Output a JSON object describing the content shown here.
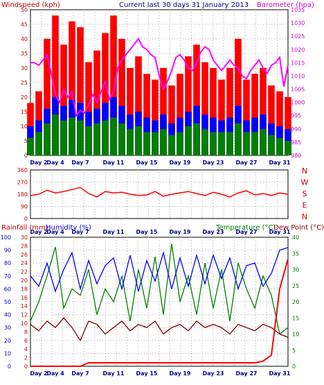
{
  "title": "Current last 30 days 31 January 2013",
  "chart_data": [
    {
      "type": "line",
      "panel": "wind-baro",
      "title": "Current last 30 days 31 January 2013",
      "ylabel_left": "Windspeed (kph)",
      "ylabel_right": "Barometer (hpa)",
      "ylim_left": [
        0,
        50
      ],
      "ylim_right": [
        980,
        1035
      ],
      "left_ticks": [
        "0",
        "5",
        "10",
        "15",
        "20",
        "25",
        "30",
        "35",
        "40",
        "45",
        "50"
      ],
      "right_ticks": [
        "980",
        "985",
        "990",
        "995",
        "1000",
        "1005",
        "1010",
        "1015",
        "1020",
        "1025",
        "1030",
        "1035"
      ],
      "x_ticks": [
        "Day 2",
        "Day 4",
        "Day 7",
        "Day 11",
        "Day 15",
        "Day 19",
        "Day 23",
        "Day 27",
        "Day 31"
      ],
      "x_tick_days": [
        2,
        4,
        7,
        11,
        15,
        19,
        23,
        27,
        31
      ],
      "x_range_days": [
        1,
        32
      ],
      "grid": true,
      "colors": {
        "gust": "#ff0000",
        "average": "#0000ff",
        "avg2": "#008000",
        "barometer": "#ff00ff"
      },
      "series": [
        {
          "key": "barometer",
          "x": [
            1,
            1.5,
            2,
            2.5,
            3,
            3.5,
            4,
            4.5,
            5,
            5.5,
            6,
            6.5,
            7,
            7.5,
            8,
            8.5,
            9,
            9.5,
            10,
            10.5,
            11,
            11.5,
            12,
            12.5,
            13,
            13.5,
            14,
            14.5,
            15,
            15.5,
            16,
            16.5,
            17,
            17.5,
            18,
            18.5,
            19,
            19.5,
            20,
            20.5,
            21,
            21.5,
            22,
            22.5,
            23,
            23.5,
            24,
            24.5,
            25,
            25.5,
            26,
            26.5,
            27,
            27.5,
            28,
            28.5,
            29,
            29.5,
            30,
            30.5,
            31,
            31.5,
            32
          ],
          "values": [
            1015,
            1015,
            1014,
            1016,
            1018,
            1011,
            1003,
            1000,
            1005,
            1002,
            1004,
            995,
            997,
            996,
            999,
            1003,
            1000,
            1004,
            1008,
            1001,
            1004,
            1013,
            1016,
            1018,
            1020,
            1022,
            1024,
            1021,
            1020,
            1018,
            1017,
            1010,
            1005,
            1008,
            1012,
            1017,
            1018,
            1016,
            1013,
            1012,
            1015,
            1019,
            1021,
            1020,
            1016,
            1014,
            1012,
            1014,
            1016,
            1014,
            1013,
            1010,
            1009,
            1012,
            1014,
            1016,
            1013,
            1011,
            1014,
            1015,
            1017,
            1006,
            1014
          ]
        },
        {
          "key": "gust",
          "x": [
            1,
            2,
            3,
            4,
            5,
            6,
            7,
            8,
            9,
            10,
            11,
            12,
            13,
            14,
            15,
            16,
            17,
            18,
            19,
            20,
            21,
            22,
            23,
            24,
            25,
            26,
            27,
            28,
            29,
            30,
            31,
            32
          ],
          "values": [
            18,
            22,
            40,
            48,
            38,
            46,
            44,
            32,
            36,
            42,
            48,
            40,
            30,
            34,
            28,
            26,
            30,
            24,
            28,
            34,
            38,
            32,
            30,
            26,
            30,
            40,
            26,
            28,
            30,
            24,
            22,
            20
          ]
        },
        {
          "key": "average",
          "x": [
            1,
            2,
            3,
            4,
            5,
            6,
            7,
            8,
            9,
            10,
            11,
            12,
            13,
            14,
            15,
            16,
            17,
            18,
            19,
            20,
            21,
            22,
            23,
            24,
            25,
            26,
            27,
            28,
            29,
            30,
            31,
            32
          ],
          "values": [
            10,
            12,
            16,
            20,
            17,
            19,
            18,
            15,
            16,
            18,
            20,
            17,
            14,
            15,
            13,
            12,
            14,
            11,
            13,
            15,
            17,
            14,
            13,
            12,
            13,
            17,
            12,
            13,
            14,
            11,
            10,
            9
          ]
        },
        {
          "key": "avg2",
          "x": [
            1,
            2,
            3,
            4,
            5,
            6,
            7,
            8,
            9,
            10,
            11,
            12,
            13,
            14,
            15,
            16,
            17,
            18,
            19,
            20,
            21,
            22,
            23,
            24,
            25,
            26,
            27,
            28,
            29,
            30,
            31,
            32
          ],
          "values": [
            6,
            8,
            11,
            14,
            12,
            13,
            12,
            10,
            11,
            12,
            13,
            11,
            9,
            10,
            8,
            8,
            9,
            7,
            8,
            10,
            11,
            9,
            8,
            8,
            8,
            11,
            8,
            8,
            9,
            7,
            6,
            5
          ]
        }
      ]
    },
    {
      "type": "line",
      "panel": "wind-direction",
      "ylim": [
        0,
        360
      ],
      "y_ticks": [
        "0",
        "90",
        "180",
        "270",
        "360"
      ],
      "compass": [
        "N",
        "W",
        "S",
        "E",
        "N"
      ],
      "x_ticks": [
        "Day 2",
        "Day 4",
        "Day 7",
        "Day 11",
        "Day 15",
        "Day 19",
        "Day 23",
        "Day 27",
        "Day 31"
      ],
      "x_tick_days": [
        2,
        4,
        7,
        11,
        15,
        19,
        23,
        27,
        31
      ],
      "x_range_days": [
        1,
        32
      ],
      "colors": {
        "direction": "#ff0000"
      },
      "series": [
        {
          "key": "direction",
          "x": [
            1,
            2,
            3,
            4,
            5,
            6,
            7,
            8,
            9,
            10,
            11,
            12,
            13,
            14,
            15,
            16,
            17,
            18,
            19,
            20,
            21,
            22,
            23,
            24,
            25,
            26,
            27,
            28,
            29,
            30,
            31,
            32
          ],
          "values": [
            170,
            180,
            210,
            190,
            200,
            215,
            230,
            185,
            160,
            200,
            190,
            195,
            180,
            170,
            175,
            200,
            165,
            180,
            190,
            200,
            185,
            170,
            195,
            180,
            160,
            190,
            205,
            175,
            185,
            170,
            190,
            180
          ]
        }
      ]
    },
    {
      "type": "line",
      "panel": "rain-humidity-temp",
      "ylabel_rain": "Rainfall (mm)",
      "ylabel_humidity": "Humidity (%)",
      "ylabel_temp": "Temperature (°C)",
      "ylabel_dew": "Dew Point (°C)",
      "ylim_humidity": [
        0,
        100
      ],
      "ylim_rain": [
        0,
        30
      ],
      "ylim_temp": [
        0,
        40
      ],
      "humidity_ticks": [
        "0",
        "10",
        "20",
        "30",
        "40",
        "50",
        "60",
        "70",
        "80",
        "90",
        "100"
      ],
      "rain_ticks": [
        "0",
        "2",
        "4",
        "6",
        "8",
        "10",
        "12",
        "14",
        "16",
        "18",
        "20",
        "22",
        "24",
        "26",
        "28",
        "30"
      ],
      "temp_ticks": [
        "0",
        "5",
        "10",
        "15",
        "20",
        "25",
        "30",
        "35",
        "40"
      ],
      "x_ticks": [
        "Day 2",
        "Day 4",
        "Day 7",
        "Day 11",
        "Day 15",
        "Day 19",
        "Day 23",
        "Day 27",
        "Day 31"
      ],
      "x_tick_days": [
        2,
        4,
        7,
        11,
        15,
        19,
        23,
        27,
        31
      ],
      "x_range_days": [
        1,
        32
      ],
      "colors": {
        "humidity": "#0000ff",
        "temperature": "#008000",
        "dewpoint": "#800000",
        "rainfall": "#ff0000"
      },
      "series": [
        {
          "key": "humidity",
          "x": [
            1,
            2,
            3,
            4,
            5,
            6,
            7,
            8,
            9,
            10,
            11,
            12,
            13,
            14,
            15,
            16,
            17,
            18,
            19,
            20,
            21,
            22,
            23,
            24,
            25,
            26,
            27,
            28,
            29,
            30,
            31,
            32
          ],
          "values": [
            70,
            62,
            80,
            58,
            75,
            88,
            60,
            82,
            64,
            78,
            84,
            60,
            86,
            58,
            82,
            66,
            88,
            60,
            84,
            62,
            86,
            64,
            86,
            68,
            84,
            60,
            78,
            80,
            62,
            72,
            90,
            92
          ]
        },
        {
          "key": "temperature",
          "x": [
            1,
            2,
            3,
            4,
            5,
            6,
            7,
            8,
            9,
            10,
            11,
            12,
            13,
            14,
            15,
            16,
            17,
            18,
            19,
            20,
            21,
            22,
            23,
            24,
            25,
            26,
            27,
            28,
            29,
            30,
            31,
            32
          ],
          "values": [
            14,
            20,
            28,
            37,
            18,
            24,
            22,
            30,
            16,
            24,
            20,
            28,
            14,
            30,
            18,
            34,
            16,
            38,
            20,
            28,
            16,
            32,
            18,
            30,
            14,
            32,
            24,
            18,
            28,
            22,
            10,
            12
          ]
        },
        {
          "key": "dewpoint",
          "x": [
            1,
            2,
            3,
            4,
            5,
            6,
            7,
            8,
            9,
            10,
            11,
            12,
            13,
            14,
            15,
            16,
            17,
            18,
            19,
            20,
            21,
            22,
            23,
            24,
            25,
            26,
            27,
            28,
            29,
            30,
            31,
            32
          ],
          "values": [
            13,
            11,
            14,
            12,
            15,
            12,
            8,
            14,
            13,
            10,
            12,
            14,
            11,
            13,
            12,
            14,
            10,
            12,
            13,
            11,
            14,
            12,
            13,
            12,
            10,
            13,
            12,
            11,
            13,
            12,
            10,
            9
          ]
        },
        {
          "key": "rainfall",
          "x": [
            1,
            2,
            3,
            4,
            5,
            6,
            7,
            8,
            9,
            10,
            11,
            12,
            13,
            14,
            15,
            16,
            17,
            18,
            19,
            20,
            21,
            22,
            23,
            24,
            25,
            26,
            27,
            28,
            29,
            30,
            31,
            32
          ],
          "values": [
            0,
            0,
            0,
            0,
            0,
            0,
            0,
            0.8,
            0.8,
            0.8,
            0.8,
            0.8,
            0.8,
            0.8,
            0.8,
            0.8,
            0.8,
            0.8,
            0.8,
            0.8,
            0.8,
            0.8,
            0.8,
            0.8,
            0.8,
            0.8,
            0.8,
            0.8,
            1.2,
            2.6,
            18,
            25
          ]
        }
      ]
    }
  ]
}
